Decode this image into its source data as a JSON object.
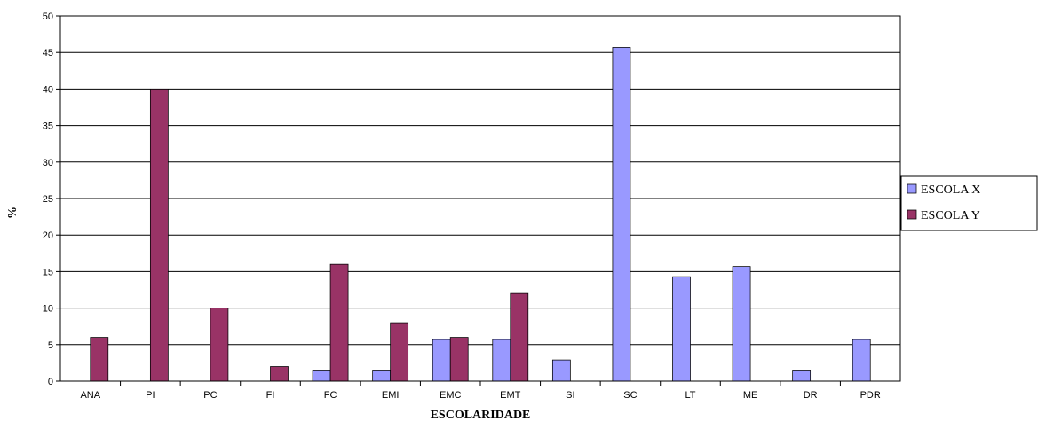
{
  "chart_data": {
    "type": "bar",
    "categories": [
      "ANA",
      "PI",
      "PC",
      "FI",
      "FC",
      "EMI",
      "EMC",
      "EMT",
      "SI",
      "SC",
      "LT",
      "ME",
      "DR",
      "PDR"
    ],
    "series": [
      {
        "name": "ESCOLA X",
        "color": "#9999ff",
        "values": [
          0,
          0,
          0,
          0,
          1.4,
          1.4,
          5.7,
          5.7,
          2.9,
          45.7,
          14.3,
          15.7,
          1.4,
          5.7
        ]
      },
      {
        "name": "ESCOLA Y",
        "color": "#993366",
        "values": [
          6,
          40,
          10,
          2,
          16,
          8,
          6,
          12,
          0,
          0,
          0,
          0,
          0,
          0
        ]
      }
    ],
    "xlabel": "ESCOLARIDADE",
    "ylabel": "%",
    "ylim": [
      0,
      50
    ],
    "yticks": [
      0,
      5,
      10,
      15,
      20,
      25,
      30,
      35,
      40,
      45,
      50
    ],
    "grid": true,
    "legend": "right"
  }
}
